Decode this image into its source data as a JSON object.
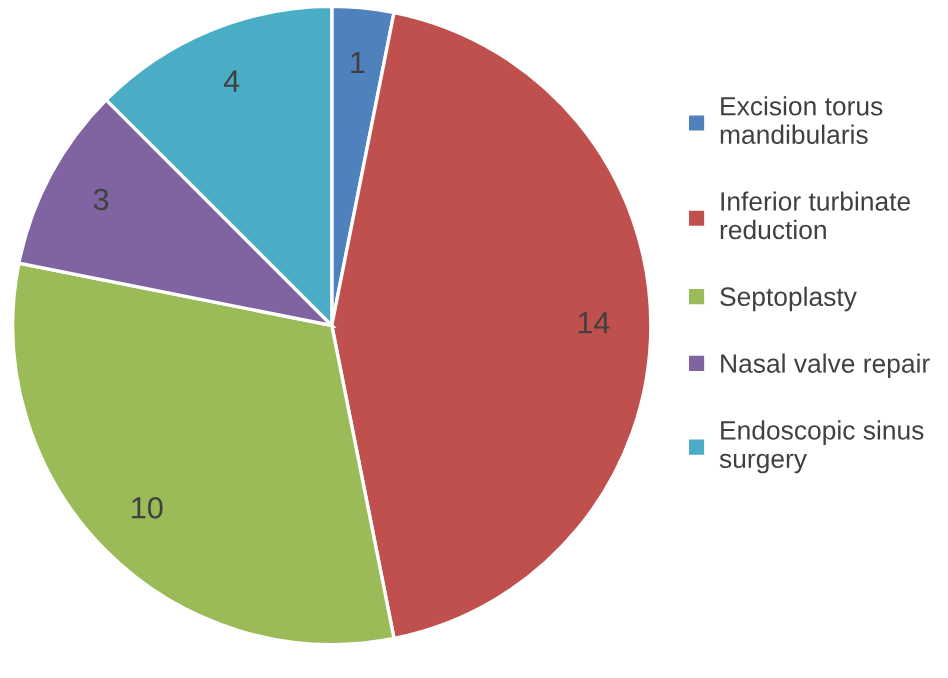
{
  "chart_data": {
    "type": "pie",
    "categories": [
      "Excision torus mandibularis",
      "Inferior turbinate reduction",
      "Septoplasty",
      "Nasal valve repair",
      "Endoscopic sinus surgery"
    ],
    "values": [
      1,
      14,
      10,
      3,
      4
    ],
    "colors": [
      "#4f81bd",
      "#c0504d",
      "#9bbb59",
      "#8064a2",
      "#4bacc6"
    ],
    "data_labels": true,
    "legend": "right"
  }
}
